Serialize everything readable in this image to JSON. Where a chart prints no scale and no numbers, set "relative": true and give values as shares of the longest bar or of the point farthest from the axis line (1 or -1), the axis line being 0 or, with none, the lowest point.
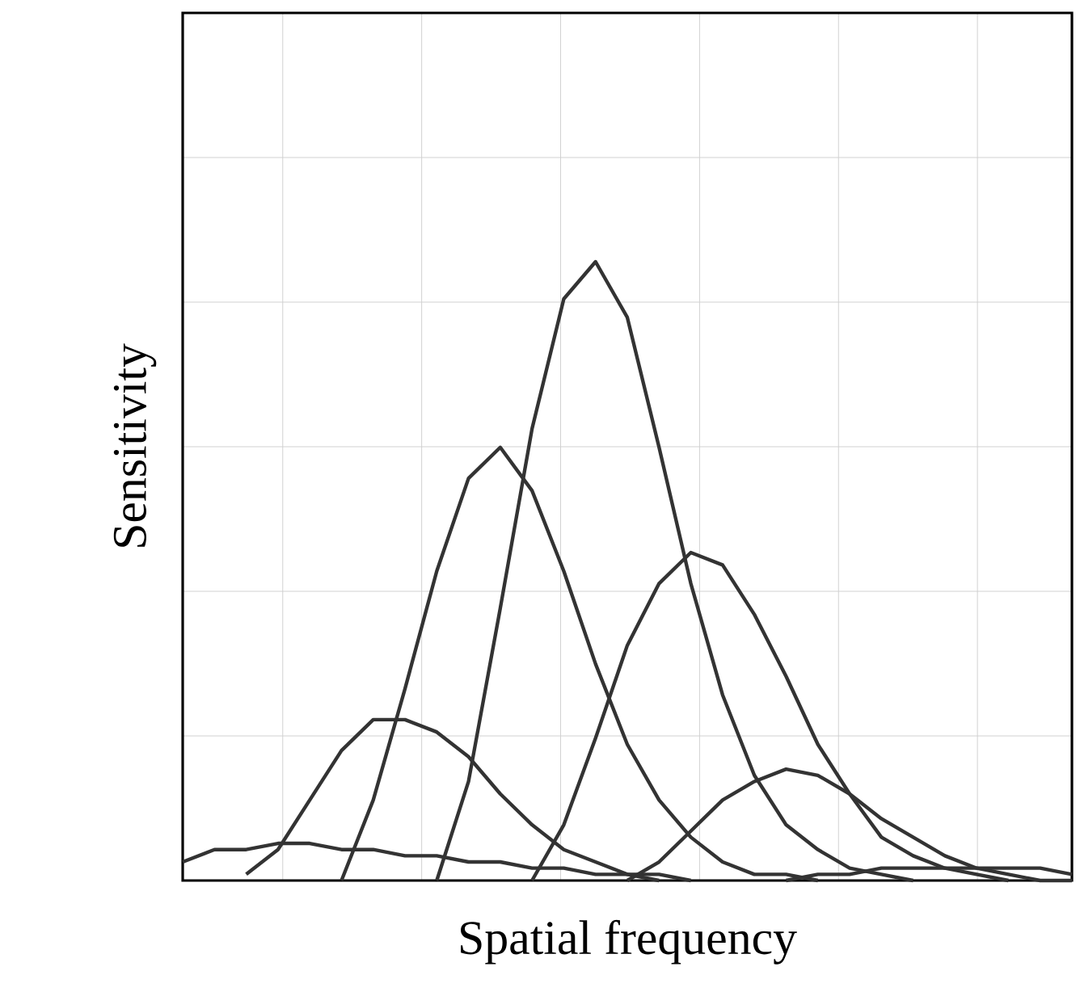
{
  "chart_data": {
    "type": "line",
    "relative": true,
    "xlabel": "Spatial frequency",
    "ylabel": "Sensitivity",
    "grid": true,
    "marker": "none",
    "line_style": "solid",
    "categories": [
      null,
      null,
      null,
      null,
      null,
      null,
      null,
      null,
      null,
      null,
      null,
      null,
      null,
      null,
      null,
      null,
      null,
      null,
      null,
      null,
      null,
      null,
      null,
      null,
      null,
      null,
      null,
      null,
      null
    ],
    "series": [
      {
        "color": "#333333",
        "values": [
          0.03,
          0.05,
          0.05,
          0.06,
          0.06,
          0.05,
          0.05,
          0.04,
          0.04,
          0.03,
          0.03,
          0.02,
          0.02,
          0.01,
          0.01,
          0.01,
          0,
          null,
          null,
          null,
          null,
          null,
          null,
          null,
          null,
          null,
          null,
          null,
          null
        ]
      },
      {
        "color": "#333333",
        "values": [
          null,
          null,
          0.01,
          0.05,
          0.13,
          0.21,
          0.26,
          0.26,
          0.24,
          0.2,
          0.14,
          0.09,
          0.05,
          0.03,
          0.01,
          0,
          null,
          null,
          null,
          null,
          null,
          null,
          null,
          null,
          null,
          null,
          null,
          null,
          null
        ]
      },
      {
        "color": "#333333",
        "values": [
          null,
          null,
          null,
          null,
          null,
          0,
          0.13,
          0.31,
          0.5,
          0.65,
          0.7,
          0.63,
          0.5,
          0.35,
          0.22,
          0.13,
          0.07,
          0.03,
          0.01,
          0.01,
          0,
          null,
          null,
          null,
          null,
          null,
          null,
          null,
          null
        ]
      },
      {
        "color": "#333333",
        "values": [
          null,
          null,
          null,
          null,
          null,
          null,
          null,
          null,
          0,
          0.16,
          0.44,
          0.73,
          0.94,
          1,
          0.91,
          0.7,
          0.48,
          0.3,
          0.17,
          0.09,
          0.05,
          0.02,
          0.01,
          0,
          null,
          null,
          null,
          null,
          null
        ]
      },
      {
        "color": "#333333",
        "values": [
          null,
          null,
          null,
          null,
          null,
          null,
          null,
          null,
          null,
          null,
          null,
          0,
          0.09,
          0.23,
          0.38,
          0.48,
          0.53,
          0.51,
          0.43,
          0.33,
          0.22,
          0.14,
          0.07,
          0.04,
          0.02,
          0.01,
          0,
          null,
          null
        ]
      },
      {
        "color": "#333333",
        "values": [
          null,
          null,
          null,
          null,
          null,
          null,
          null,
          null,
          null,
          null,
          null,
          null,
          null,
          null,
          0,
          0.03,
          0.08,
          0.13,
          0.16,
          0.18,
          0.17,
          0.14,
          0.1,
          0.07,
          0.04,
          0.02,
          0.01,
          0,
          0
        ]
      },
      {
        "color": "#333333",
        "values": [
          null,
          null,
          null,
          null,
          null,
          null,
          null,
          null,
          null,
          null,
          null,
          null,
          null,
          null,
          null,
          null,
          null,
          null,
          null,
          0,
          0.01,
          0.01,
          0.02,
          0.02,
          0.02,
          0.02,
          0.02,
          0.02,
          0.01
        ]
      }
    ]
  }
}
